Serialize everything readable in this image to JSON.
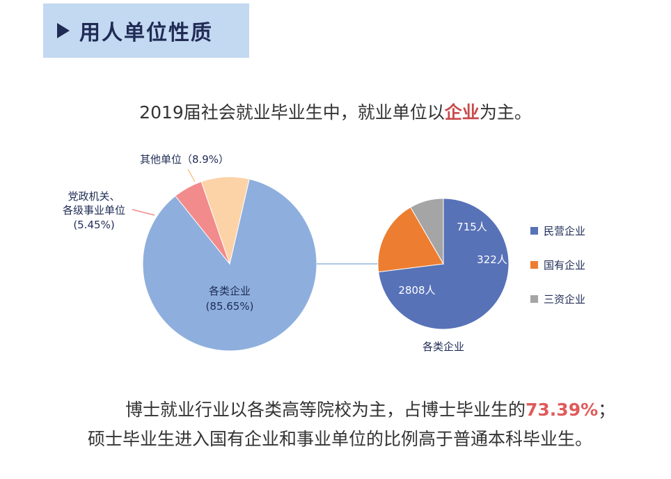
{
  "header": {
    "title": "用人单位性质"
  },
  "subtitle": {
    "before": "2019届社会就业毕业生中，就业单位以",
    "highlight": "企业",
    "after": "为主。"
  },
  "chart_data": [
    {
      "type": "pie",
      "slices": [
        {
          "name": "各类企业",
          "percent_label": "(85.65%)",
          "value": 85.65,
          "color": "#8eafdd"
        },
        {
          "name": "党政机关、各级事业单位",
          "line1": "党政机关、",
          "line2": "各级事业单位",
          "percent_label": "(5.45%)",
          "value": 5.45,
          "color": "#f28b8b"
        },
        {
          "name": "其他单位",
          "label": "其他单位（8.9%）",
          "value": 8.9,
          "color": "#fcd2a7"
        }
      ]
    },
    {
      "type": "pie",
      "caption": "各类企业",
      "slices": [
        {
          "name": "民营企业",
          "label": "2808人",
          "value": 2808,
          "color": "#5872b8"
        },
        {
          "name": "国有企业",
          "label": "715人",
          "value": 715,
          "color": "#ed7d31"
        },
        {
          "name": "三资企业",
          "label": "322人",
          "value": 322,
          "color": "#a5a5a5"
        }
      ],
      "legend": [
        "民营企业",
        "国有企业",
        "三资企业"
      ],
      "legend_position": "right"
    }
  ],
  "footer": {
    "line1_before": "博士就业行业以各类高等院校为主，占博士毕业生的",
    "line1_highlight": "73.39%",
    "line1_after": "；",
    "line2": "硕士毕业生进入国有企业和事业单位的比例高于普通本科毕业生。"
  }
}
